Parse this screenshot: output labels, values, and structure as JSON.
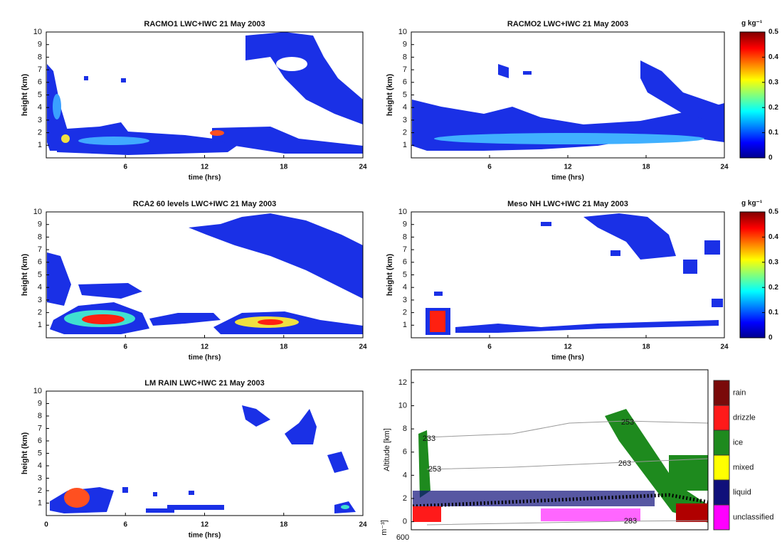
{
  "chart_data": [
    {
      "type": "heatmap",
      "title": "RACMO1 LWC+IWC 21 May 2003",
      "xlabel": "time (hrs)",
      "ylabel": "height (km)",
      "xlim": [
        0,
        24
      ],
      "ylim": [
        0,
        10
      ],
      "xticks": [
        6,
        12,
        18,
        24
      ],
      "yticks": [
        1,
        2,
        3,
        4,
        5,
        6,
        7,
        8,
        9,
        10
      ]
    },
    {
      "type": "heatmap",
      "title": "RACMO2 LWC+IWC 21 May 2003",
      "xlabel": "time (hrs)",
      "ylabel": "height (km)",
      "xlim": [
        0,
        24
      ],
      "ylim": [
        0,
        10
      ],
      "xticks": [
        6,
        12,
        18,
        24
      ],
      "yticks": [
        1,
        2,
        3,
        4,
        5,
        6,
        7,
        8,
        9,
        10
      ],
      "colorbar": {
        "label": "g kg⁻¹",
        "lim": [
          0,
          0.5
        ],
        "ticks": [
          0,
          0.1,
          0.2,
          0.3,
          0.4,
          0.5
        ]
      }
    },
    {
      "type": "heatmap",
      "title": "RCA2 60 levels LWC+IWC 21 May 2003",
      "xlabel": "time (hrs)",
      "ylabel": "height (km)",
      "xlim": [
        0,
        24
      ],
      "ylim": [
        0,
        10
      ],
      "xticks": [
        6,
        12,
        18,
        24
      ],
      "yticks": [
        1,
        2,
        3,
        4,
        5,
        6,
        7,
        8,
        9,
        10
      ]
    },
    {
      "type": "heatmap",
      "title": "Meso NH LWC+IWC 21 May 2003",
      "xlabel": "time (hrs)",
      "ylabel": "height (km)",
      "xlim": [
        0,
        24
      ],
      "ylim": [
        0,
        10
      ],
      "xticks": [
        6,
        12,
        18,
        24
      ],
      "yticks": [
        1,
        2,
        3,
        4,
        5,
        6,
        7,
        8,
        9,
        10
      ],
      "colorbar": {
        "label": "g kg⁻¹",
        "lim": [
          0,
          0.5
        ],
        "ticks": [
          0,
          0.1,
          0.2,
          0.3,
          0.4,
          0.5
        ]
      }
    },
    {
      "type": "heatmap",
      "title": "LM RAIN LWC+IWC 21 May 2003",
      "xlabel": "time (hrs)",
      "ylabel": "height (km)",
      "xlim": [
        0,
        24
      ],
      "ylim": [
        0,
        10
      ],
      "xticks": [
        0,
        6,
        12,
        18,
        24
      ],
      "yticks": [
        1,
        2,
        3,
        4,
        5,
        6,
        7,
        8,
        9,
        10
      ]
    },
    {
      "type": "classification",
      "ylabel": "Altitude [km]",
      "ylim": [
        -0.7,
        13.1
      ],
      "yticks": [
        0,
        2,
        4,
        6,
        8,
        10,
        12
      ],
      "legend": {
        "categories": [
          "rain",
          "drizzle",
          "ice",
          "mixed",
          "liquid",
          "unclassified"
        ],
        "colors": [
          "#7a0a0a",
          "#ff1a1a",
          "#1e8a1e",
          "#ffff00",
          "#10107a",
          "#ff00ff"
        ]
      },
      "annotations": [
        "233",
        "253",
        "253",
        "263",
        "283",
        "600",
        "m⁻³]"
      ]
    }
  ]
}
